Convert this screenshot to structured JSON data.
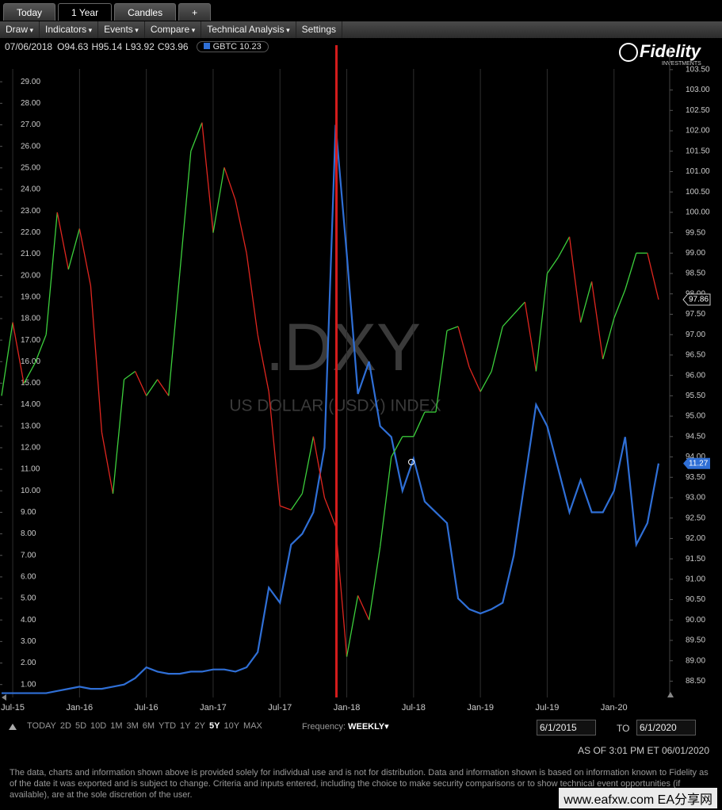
{
  "tabs": [
    "Today",
    "1 Year",
    "Candles",
    "+"
  ],
  "menu": [
    "Draw",
    "Indicators",
    "Events",
    "Compare",
    "Technical Analysis",
    "Settings"
  ],
  "info": {
    "date": "07/06/2018",
    "ohlc": [
      {
        "label": "O",
        "value": "94.63"
      },
      {
        "label": "H",
        "value": "95.14"
      },
      {
        "label": "L",
        "value": "93.92"
      },
      {
        "label": "C",
        "value": "93.96"
      }
    ],
    "compare": "GBTC 10.23"
  },
  "logo": {
    "name": "Fidelity",
    "sub": "INVESTMENTS"
  },
  "watermark": {
    "symbol": ".DXY",
    "name": "US DOLLAR (USDX) INDEX"
  },
  "chart_data": {
    "type": "line",
    "x": [
      "2015-06",
      "2015-07",
      "2015-08",
      "2015-09",
      "2015-10",
      "2015-11",
      "2015-12",
      "2016-01",
      "2016-02",
      "2016-03",
      "2016-04",
      "2016-05",
      "2016-06",
      "2016-07",
      "2016-08",
      "2016-09",
      "2016-10",
      "2016-11",
      "2016-12",
      "2017-01",
      "2017-02",
      "2017-03",
      "2017-04",
      "2017-05",
      "2017-06",
      "2017-07",
      "2017-08",
      "2017-09",
      "2017-10",
      "2017-11",
      "2017-12",
      "2018-01",
      "2018-02",
      "2018-03",
      "2018-04",
      "2018-05",
      "2018-06",
      "2018-07",
      "2018-08",
      "2018-09",
      "2018-10",
      "2018-11",
      "2018-12",
      "2019-01",
      "2019-02",
      "2019-03",
      "2019-04",
      "2019-05",
      "2019-06",
      "2019-07",
      "2019-08",
      "2019-09",
      "2019-10",
      "2019-11",
      "2019-12",
      "2020-01",
      "2020-02",
      "2020-03",
      "2020-04",
      "2020-05"
    ],
    "xlim": [
      "2015-06",
      "2020-06"
    ],
    "xticks": [
      {
        "value": "2015-07",
        "label": "Jul-15"
      },
      {
        "value": "2016-01",
        "label": "Jan-16"
      },
      {
        "value": "2016-07",
        "label": "Jul-16"
      },
      {
        "value": "2017-01",
        "label": "Jan-17"
      },
      {
        "value": "2017-07",
        "label": "Jul-17"
      },
      {
        "value": "2018-01",
        "label": "Jan-18"
      },
      {
        "value": "2018-07",
        "label": "Jul-18"
      },
      {
        "value": "2019-01",
        "label": "Jan-19"
      },
      {
        "value": "2019-07",
        "label": "Jul-19"
      },
      {
        "value": "2020-01",
        "label": "Jan-20"
      }
    ],
    "ylim": [
      0.4,
      30.7
    ],
    "yticks": [
      {
        "value": 1,
        "label": "1.00"
      },
      {
        "value": 2,
        "label": "2.00"
      },
      {
        "value": 3,
        "label": "3.00"
      },
      {
        "value": 4,
        "label": "4.00"
      },
      {
        "value": 5,
        "label": "5.00"
      },
      {
        "value": 6,
        "label": "6.00"
      },
      {
        "value": 7,
        "label": "7.00"
      },
      {
        "value": 8,
        "label": "8.00"
      },
      {
        "value": 9,
        "label": "9.00"
      },
      {
        "value": 10,
        "label": "10.00"
      },
      {
        "value": 11,
        "label": "11.00"
      },
      {
        "value": 12,
        "label": "12.00"
      },
      {
        "value": 13,
        "label": "13.00"
      },
      {
        "value": 14,
        "label": "14.00"
      },
      {
        "value": 15,
        "label": "15.00"
      },
      {
        "value": 16,
        "label": "16.00"
      },
      {
        "value": 17,
        "label": "17.00"
      },
      {
        "value": 18,
        "label": "18.00"
      },
      {
        "value": 19,
        "label": "19.00"
      },
      {
        "value": 20,
        "label": "20.00"
      },
      {
        "value": 21,
        "label": "21.00"
      },
      {
        "value": 22,
        "label": "22.00"
      },
      {
        "value": 23,
        "label": "23.00"
      },
      {
        "value": 24,
        "label": "24.00"
      },
      {
        "value": 25,
        "label": "25.00"
      },
      {
        "value": 26,
        "label": "26.00"
      },
      {
        "value": 27,
        "label": "27.00"
      },
      {
        "value": 28,
        "label": "28.00"
      },
      {
        "value": 29,
        "label": "29.00"
      }
    ],
    "y2lim": [
      88.1,
      104.1
    ],
    "y2ticks": [
      {
        "value": 88.5,
        "label": "88.50"
      },
      {
        "value": 89,
        "label": "89.00"
      },
      {
        "value": 89.5,
        "label": "89.50"
      },
      {
        "value": 90,
        "label": "90.00"
      },
      {
        "value": 90.5,
        "label": "90.50"
      },
      {
        "value": 91,
        "label": "91.00"
      },
      {
        "value": 91.5,
        "label": "91.50"
      },
      {
        "value": 92,
        "label": "92.00"
      },
      {
        "value": 92.5,
        "label": "92.50"
      },
      {
        "value": 93,
        "label": "93.00"
      },
      {
        "value": 93.5,
        "label": "93.50"
      },
      {
        "value": 94,
        "label": "94.00"
      },
      {
        "value": 94.5,
        "label": "94.50"
      },
      {
        "value": 95,
        "label": "95.00"
      },
      {
        "value": 95.5,
        "label": "95.50"
      },
      {
        "value": 96,
        "label": "96.00"
      },
      {
        "value": 96.5,
        "label": "96.50"
      },
      {
        "value": 97,
        "label": "97.00"
      },
      {
        "value": 97.5,
        "label": "97.50"
      },
      {
        "value": 98,
        "label": "98.00"
      },
      {
        "value": 98.5,
        "label": "98.50"
      },
      {
        "value": 99,
        "label": "99.00"
      },
      {
        "value": 99.5,
        "label": "99.50"
      },
      {
        "value": 100,
        "label": "100.00"
      },
      {
        "value": 100.5,
        "label": "100.50"
      },
      {
        "value": 101,
        "label": "101.00"
      },
      {
        "value": 101.5,
        "label": "101.50"
      },
      {
        "value": 102,
        "label": "102.00"
      },
      {
        "value": 102.5,
        "label": "102.50"
      },
      {
        "value": 103,
        "label": "103.00"
      },
      {
        "value": 103.5,
        "label": "103.50"
      }
    ],
    "grid": true,
    "series": [
      {
        "name": "GBTC",
        "color": "#2f6fd6",
        "last_label": "11.27",
        "values": [
          0.6,
          0.6,
          0.6,
          0.6,
          0.6,
          0.7,
          0.8,
          0.9,
          0.8,
          0.8,
          0.9,
          1.0,
          1.3,
          1.8,
          1.6,
          1.5,
          1.5,
          1.6,
          1.6,
          1.7,
          1.7,
          1.6,
          1.8,
          2.5,
          5.5,
          4.8,
          7.5,
          8.0,
          9.0,
          12.0,
          27.0,
          21.0,
          14.5,
          16.0,
          13.0,
          12.5,
          10.0,
          11.5,
          9.5,
          9.0,
          8.5,
          5.0,
          4.5,
          4.3,
          4.5,
          4.8,
          7.0,
          10.5,
          14.0,
          13.0,
          11.0,
          9.0,
          10.5,
          9.0,
          9.0,
          10.0,
          12.5,
          7.5,
          8.5,
          11.27
        ]
      },
      {
        "name": ".DXY",
        "axis": "y2",
        "up_color": "#3ccf3c",
        "down_color": "#e0261f",
        "last_label": "97.86",
        "values": [
          95.5,
          97.3,
          95.8,
          96.3,
          97.0,
          100.0,
          98.6,
          99.6,
          98.2,
          94.6,
          93.1,
          95.9,
          96.1,
          95.5,
          95.9,
          95.5,
          98.5,
          101.5,
          102.2,
          99.5,
          101.1,
          100.3,
          99.0,
          97.0,
          95.6,
          92.8,
          92.7,
          93.1,
          94.5,
          93.0,
          92.3,
          89.1,
          90.6,
          90.0,
          91.8,
          94.0,
          94.5,
          94.5,
          95.1,
          95.1,
          97.1,
          97.2,
          96.2,
          95.6,
          96.1,
          97.2,
          97.5,
          97.8,
          96.1,
          98.5,
          98.9,
          99.4,
          97.3,
          98.3,
          96.4,
          97.4,
          98.1,
          99.0,
          99.0,
          97.86
        ]
      }
    ]
  },
  "ranges": [
    "TODAY",
    "2D",
    "5D",
    "10D",
    "1M",
    "3M",
    "6M",
    "YTD",
    "1Y",
    "2Y",
    "5Y",
    "10Y",
    "MAX"
  ],
  "frequency": {
    "label": "Frequency:",
    "value": "WEEKLY"
  },
  "dates": {
    "from": "6/1/2015",
    "to_label": "TO",
    "to": "6/1/2020"
  },
  "as_of": "AS OF 3:01 PM ET 06/01/2020",
  "disclaimer": "The data, charts and information shown above is provided solely for individual use and is not for distribution.  Data and information shown is based on information known to Fidelity as of the date it was exported and is subject to change. Criteria and inputs entered, including the choice to make security comparisons or to show technical event opportunities (if available), are at the sole discretion of the user.",
  "site": "www.eafxw.com  EA分享网"
}
